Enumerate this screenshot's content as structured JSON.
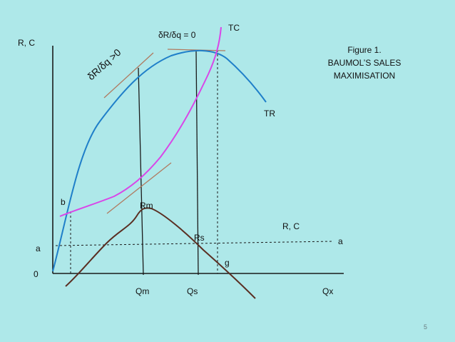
{
  "labels": {
    "y_axis": "R, C",
    "tc": "TC",
    "tr": "TR",
    "slope_zero": "δR/δq  = 0",
    "slope_pos": "δR/δq >0",
    "rm": "Rm",
    "rs": "Rs",
    "b": "b",
    "a_left": "a",
    "a_right": "a",
    "origin": "0",
    "g": "g",
    "qm": "Qm",
    "qs": "Qs",
    "qx": "Qx",
    "profit_rc": "R, C"
  },
  "figure": {
    "line1": "Figure 1.",
    "line2": "BAUMOL’S SALES",
    "line3": "MAXIMISATION"
  },
  "page_number": "5",
  "colors": {
    "background": "#aee8e9",
    "tr_curve": "#1f7fc9",
    "tc_curve": "#d946e8",
    "profit_curve": "#5a2e22",
    "tangent": "#b07a60",
    "axis": "#1a1a1a"
  }
}
